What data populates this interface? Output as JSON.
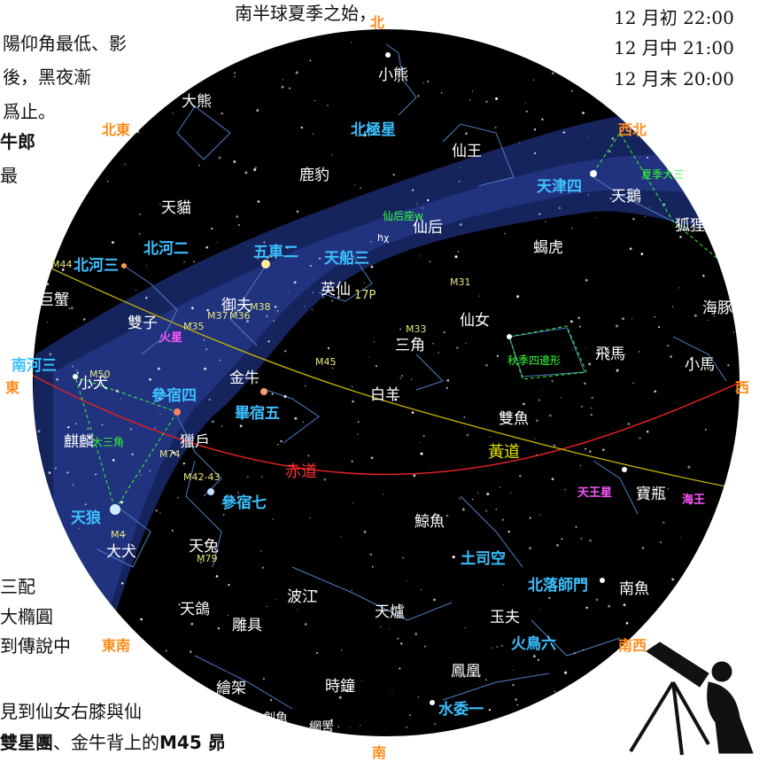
{
  "side_text": {
    "line1": "南半球夏季之始，",
    "line2": "陽仰角最低、影",
    "line3": "後，黑夜漸",
    "line4": "爲止。",
    "line5": "牛郎",
    "line6": "最",
    "line7": "三配",
    "line8": "大橢圓",
    "line9": "到傳說中",
    "line10": "見到仙女右膝與仙",
    "line11_bold": "雙星團",
    "line11_rest": "、金牛背上的",
    "line11_m45": "M45 昴"
  },
  "times": [
    "12 月初 22:00",
    "12 月中 21:00",
    "12 月末 20:00"
  ],
  "directions": {
    "n": "北",
    "ne": "北東",
    "nw": "西北",
    "e": "東",
    "w": "西",
    "se": "東南",
    "sw": "南西",
    "s": "南"
  },
  "constellations": {
    "ursa_minor": "小熊",
    "ursa_major": "大熊",
    "camelopardalis": "鹿豹",
    "lynx": "天貓",
    "cepheus": "仙王",
    "cygnus": "天鵝",
    "vulpecula": "狐狸",
    "cassiopeia": "仙后",
    "lacerta": "蝎虎",
    "perseus": "英仙",
    "delphinus": "海豚",
    "cancer": "巨蟹",
    "auriga": "御夫",
    "gemini": "雙子",
    "andromeda": "仙女",
    "pegasus": "飛馬",
    "equuleus": "小馬",
    "triangulum": "三角",
    "canis_minor": "小犬",
    "taurus": "金牛",
    "aries": "白羊",
    "pisces": "雙魚",
    "monoceros": "麒麟",
    "orion": "獵戶",
    "aquarius": "寶瓶",
    "cetus": "鯨魚",
    "canis_major": "大犬",
    "lepus": "天兔",
    "eridanus": "波江",
    "fornax": "天爐",
    "piscis_austrinus": "南魚",
    "sculptor": "玉夫",
    "columba": "天鴿",
    "caelum": "雕具",
    "phoenix": "鳳凰",
    "pictor": "繪架",
    "horologium": "時鐘",
    "dorado": "劍魚",
    "reticulum": "網罟"
  },
  "stars": {
    "polaris": "北極星",
    "deneb": "天津四",
    "pollux": "北河三",
    "castor": "北河二",
    "capella": "五車二",
    "mirfak": "天船三",
    "procyon": "南河三",
    "betelgeuse": "參宿四",
    "aldebaran": "畢宿五",
    "rigel": "參宿七",
    "sirius": "天狼",
    "diphda": "土司空",
    "fomalhaut": "北落師門",
    "ankaa": "火鳥六",
    "achernar": "水委一"
  },
  "messier": {
    "m44": "M44",
    "m35": "M35",
    "m37": "M37",
    "m36": "M36",
    "m38": "M38",
    "m50": "M50",
    "m74": "M74",
    "m42": "M42-43",
    "m4": "M4",
    "m79": "M79",
    "m45": "M45",
    "m33": "M33",
    "m31": "M31",
    "hchi": "hχ"
  },
  "asterisms": {
    "summer_triangle": "夏季大三",
    "autumn_square": "秋季四邊形",
    "winter_triangle": "大三角",
    "cassiopeia_w": "仙后座w"
  },
  "planets": {
    "mars": "火星",
    "uranus": "天王星",
    "neptune": "海王"
  },
  "comet": "17P",
  "lines": {
    "equator": "赤道",
    "ecliptic": "黃道"
  },
  "colors": {
    "sky": "#000000",
    "milky_way": "#1a2a6e",
    "constellation_line": "#4f7fc4",
    "label_white": "#ffffff",
    "label_star": "#3cc0ff",
    "direction": "#ff8c1a",
    "equator": "#e02020",
    "ecliptic": "#c8b400",
    "asterism": "#33ff33"
  }
}
